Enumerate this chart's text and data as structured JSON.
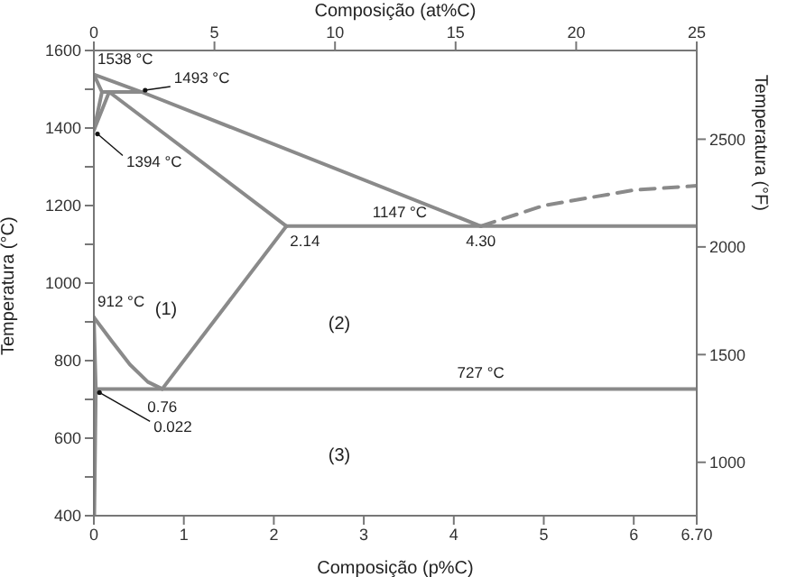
{
  "chart_data": {
    "type": "line",
    "xlabel": "Composição (p%C)",
    "x2label": "Composição (at%C)",
    "ylabel": "Temperatura (°C)",
    "y2label": "Temperatura (°F)",
    "xlim": [
      0,
      6.7
    ],
    "xticks": [
      0,
      1,
      2,
      3,
      4,
      5,
      6,
      {
        "value": 6.7,
        "label": "6.70"
      }
    ],
    "x2lim": [
      0,
      25
    ],
    "x2ticks": [
      0,
      5,
      10,
      15,
      20,
      25
    ],
    "ylim": [
      400,
      1600
    ],
    "yticks": [
      400,
      {
        "value": 500,
        "label": null
      },
      600,
      {
        "value": 700,
        "label": null
      },
      800,
      {
        "value": 900,
        "label": null
      },
      1000,
      {
        "value": 1100,
        "label": null
      },
      1200,
      {
        "value": 1300,
        "label": null
      },
      1400,
      {
        "value": 1500,
        "label": null
      },
      1600
    ],
    "y2lim": [
      752,
      2912
    ],
    "y2ticks": [
      1000,
      1500,
      2000,
      2500
    ],
    "grid": false,
    "marker": "none",
    "series": [
      {
        "color": "#8a8a8a",
        "x": [
          0,
          0.53,
          4.3
        ],
        "values": [
          1538,
          1493,
          1147
        ]
      },
      {
        "color": "#8a8a8a",
        "x": [
          0.09,
          0.53
        ],
        "values": [
          1493,
          1493
        ]
      },
      {
        "color": "#8a8a8a",
        "x": [
          0,
          0.09
        ],
        "values": [
          1538,
          1493
        ]
      },
      {
        "color": "#8a8a8a",
        "x": [
          0,
          0.09
        ],
        "values": [
          1394,
          1493
        ]
      },
      {
        "color": "#8a8a8a",
        "x": [
          0,
          0.17,
          2.14
        ],
        "values": [
          1394,
          1493,
          1147
        ]
      },
      {
        "color": "#8a8a8a",
        "x": [
          2.14,
          6.7
        ],
        "values": [
          1147,
          1147
        ]
      },
      {
        "color": "#8a8a8a",
        "x": [
          2.14,
          0.76
        ],
        "values": [
          1147,
          727
        ]
      },
      {
        "color": "#8a8a8a",
        "x": [
          0,
          0.2,
          0.4,
          0.6,
          0.76
        ],
        "values": [
          912,
          850,
          790,
          745,
          727
        ]
      },
      {
        "color": "#8a8a8a",
        "x": [
          0.022,
          6.7
        ],
        "values": [
          727,
          727
        ]
      },
      {
        "color": "#8a8a8a",
        "x": [
          0,
          0.022,
          0.005
        ],
        "values": [
          912,
          727,
          400
        ]
      },
      {
        "color": "#8a8a8a",
        "line_style": "dashed",
        "x": [
          4.3,
          5,
          6,
          6.7
        ],
        "values": [
          1147,
          1200,
          1240,
          1251
        ]
      }
    ],
    "annotations": [
      {
        "text": "1538 °C",
        "x": 0,
        "y": 1538
      },
      {
        "text": "1493 °C",
        "x": 0.53,
        "y": 1493
      },
      {
        "text": "1394 °C",
        "x": 0,
        "y": 1394
      },
      {
        "text": "1147 °C",
        "x": 3.4,
        "y": 1147
      },
      {
        "text": "2.14",
        "x": 2.14,
        "y": 1147
      },
      {
        "text": "4.30",
        "x": 4.3,
        "y": 1147
      },
      {
        "text": "912 °C",
        "x": 0,
        "y": 912
      },
      {
        "text": "0.76",
        "x": 0.76,
        "y": 727
      },
      {
        "text": "0.022",
        "x": 0.022,
        "y": 727
      },
      {
        "text": "727 °C",
        "x": 4.3,
        "y": 727
      },
      "(1)",
      "(2)",
      "(3)"
    ]
  }
}
